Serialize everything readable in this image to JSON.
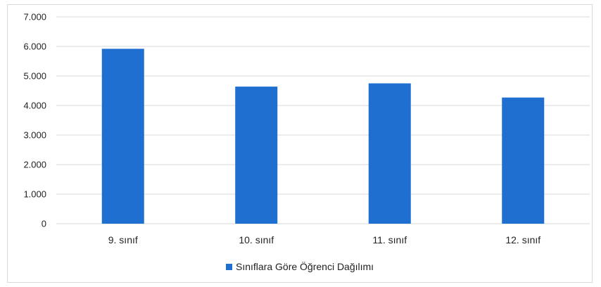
{
  "chart_data": {
    "type": "bar",
    "categories": [
      "9. sınıf",
      "10. sınıf",
      "11. sınıf",
      "12. sınıf"
    ],
    "series": [
      {
        "name": "Sınıflara Göre Öğrenci Dağılımı",
        "values": [
          5920,
          4640,
          4750,
          4270
        ]
      }
    ],
    "ylim": [
      0,
      7000
    ],
    "yticks": [
      0,
      1000,
      2000,
      3000,
      4000,
      5000,
      6000,
      7000
    ],
    "ytick_labels": [
      "0",
      "1.000",
      "2.000",
      "3.000",
      "4.000",
      "5.000",
      "6.000",
      "7.000"
    ],
    "grid": true,
    "legend_position": "bottom",
    "bar_color": "#1f6fd0",
    "grid_color": "#d9d9d9"
  }
}
